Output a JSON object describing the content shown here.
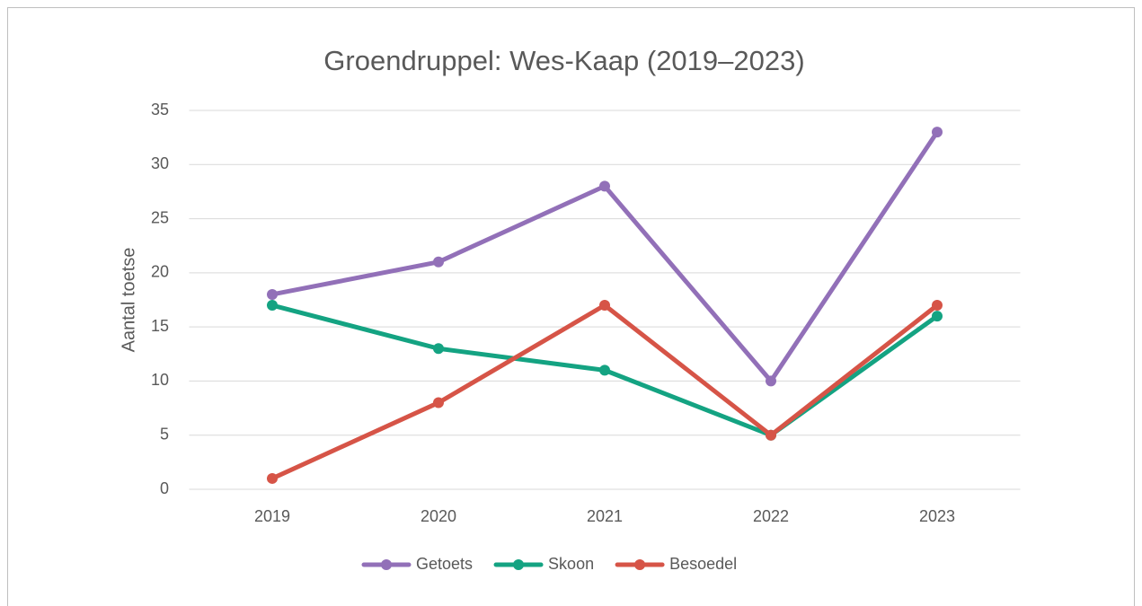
{
  "chart_data": {
    "type": "line",
    "title": "Groendruppel: Wes-Kaap (2019–2023)",
    "y_label": "Aantal toetse",
    "categories": [
      "2019",
      "2020",
      "2021",
      "2022",
      "2023"
    ],
    "series": [
      {
        "name": "Getoets",
        "color": "#9270b8",
        "values": [
          18,
          21,
          28,
          10,
          33
        ]
      },
      {
        "name": "Skoon",
        "color": "#14a382",
        "values": [
          17,
          13,
          11,
          5,
          16
        ]
      },
      {
        "name": "Besoedel",
        "color": "#d65447",
        "values": [
          1,
          8,
          17,
          5,
          17
        ]
      }
    ],
    "ylim": [
      0,
      35
    ],
    "yticks": [
      0,
      5,
      10,
      15,
      20,
      25,
      30,
      35
    ],
    "grid": true,
    "legend": "bottom"
  }
}
